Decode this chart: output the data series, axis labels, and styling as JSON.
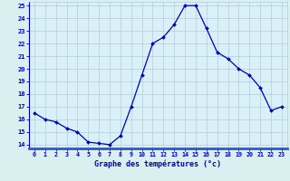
{
  "hours": [
    0,
    1,
    2,
    3,
    4,
    5,
    6,
    7,
    8,
    9,
    10,
    11,
    12,
    13,
    14,
    15,
    16,
    17,
    18,
    19,
    20,
    21,
    22,
    23
  ],
  "temps": [
    16.5,
    16.0,
    15.8,
    15.3,
    15.0,
    14.2,
    14.1,
    14.0,
    14.7,
    17.0,
    19.5,
    22.0,
    22.5,
    23.5,
    25.0,
    25.0,
    23.2,
    21.3,
    20.8,
    20.0,
    19.5,
    18.5,
    16.7,
    17.0
  ],
  "ylim": [
    13.7,
    25.3
  ],
  "yticks": [
    14,
    15,
    16,
    17,
    18,
    19,
    20,
    21,
    22,
    23,
    24,
    25
  ],
  "xtick_labels": [
    "0",
    "1",
    "2",
    "3",
    "4",
    "5",
    "6",
    "7",
    "8",
    "9",
    "10",
    "11",
    "12",
    "13",
    "14",
    "15",
    "16",
    "17",
    "18",
    "19",
    "20",
    "21",
    "22",
    "23"
  ],
  "xlabel": "Graphe des températures (°c)",
  "line_color": "#0000bb",
  "marker_color": "#0000bb",
  "bg_color": "#d8f0f0",
  "plot_bg_color": "#d8f0f8",
  "grid_color": "#b8ccd8",
  "axis_color": "#0000bb",
  "label_color": "#0000bb",
  "tick_color": "#0000bb",
  "bottom_band_color": "#3355cc"
}
